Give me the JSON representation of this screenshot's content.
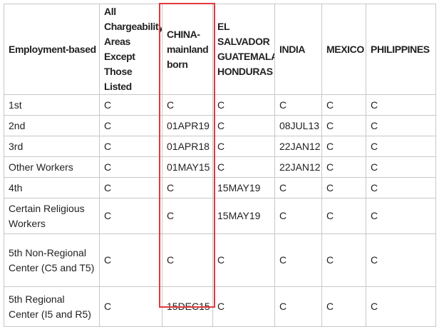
{
  "table": {
    "header": [
      "Employment-based",
      "All Chargeability Areas Except Those Listed",
      "CHINA-mainland born",
      "EL SALVADOR GUATEMALA HONDURAS",
      "INDIA",
      "MEXICO",
      "PHILIPPINES"
    ],
    "rows": [
      [
        "1st",
        "C",
        "C",
        "C",
        "C",
        "C",
        "C"
      ],
      [
        "2nd",
        "C",
        "01APR19",
        "C",
        "08JUL13",
        "C",
        "C"
      ],
      [
        "3rd",
        "C",
        "01APR18",
        "C",
        "22JAN12",
        "C",
        "C"
      ],
      [
        "Other Workers",
        "C",
        "01MAY15",
        "C",
        "22JAN12",
        "C",
        "C"
      ],
      [
        "4th",
        "C",
        "C",
        "15MAY19",
        "C",
        "C",
        "C"
      ],
      [
        "Certain Religious Workers",
        "C",
        "C",
        "15MAY19",
        "C",
        "C",
        "C"
      ],
      [
        "5th Non-Regional Center (C5 and T5)",
        "C",
        "C",
        "C",
        "C",
        "C",
        "C"
      ],
      [
        "5th Regional Center (I5 and R5)",
        "C",
        "15DEC15",
        "C",
        "C",
        "C",
        "C"
      ]
    ]
  }
}
